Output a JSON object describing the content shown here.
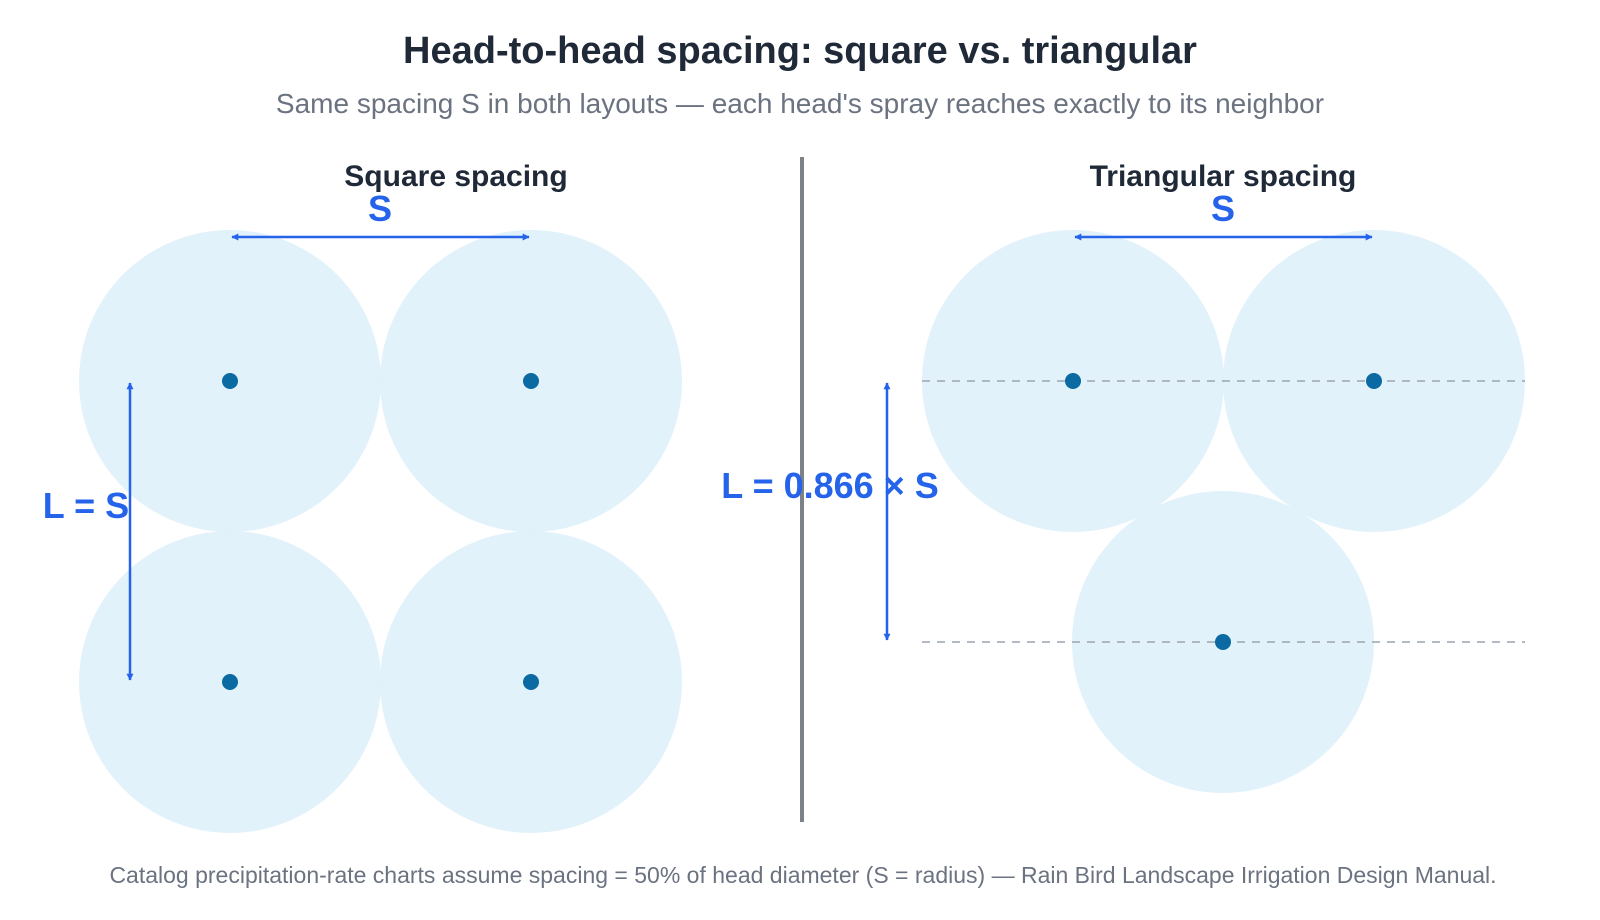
{
  "title": "Head-to-head spacing: square vs. triangular",
  "subtitle": "Same spacing S in both layouts — each head's spray reaches exactly to its neighbor",
  "panels": {
    "square": {
      "title": "Square spacing",
      "spacing_label": "S",
      "row_label": "L = S",
      "row_spacing_factor": 1.0
    },
    "triangular": {
      "title": "Triangular spacing",
      "spacing_label": "S",
      "row_label": "L = 0.866 × S",
      "row_spacing_factor": 0.866
    }
  },
  "footnote": "Catalog precipitation-rate charts assume spacing = 50% of head diameter (S = radius) — Rain Bird Landscape Irrigation Design Manual.",
  "colors": {
    "spray_fill": "#ddf0fa",
    "head": "#0a6aa1",
    "dimension": "#2563eb",
    "reference_line": "#9ca3af",
    "divider": "#7c8288"
  }
}
